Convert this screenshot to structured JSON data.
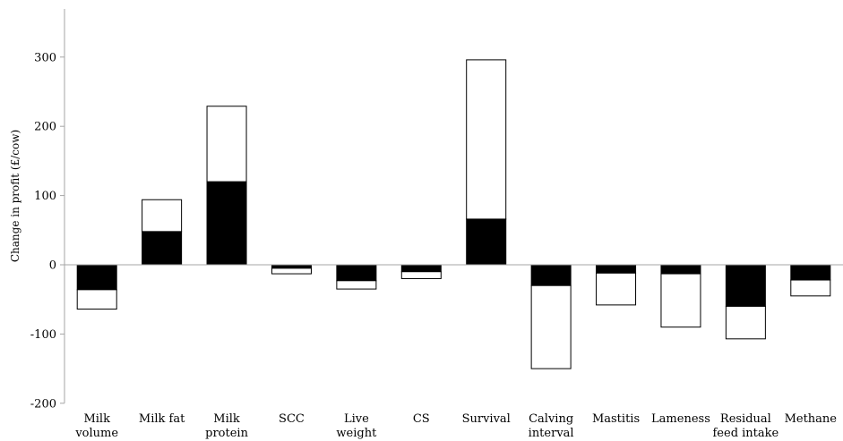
{
  "chart_data": {
    "type": "bar",
    "stacked": true,
    "title": "",
    "ylabel": "Change in profit (£/cow)",
    "xlabel": "",
    "ylim": [
      -200,
      350
    ],
    "yticks": [
      -200,
      -100,
      0,
      100,
      200,
      300
    ],
    "grid": false,
    "legend": "none",
    "categories": [
      [
        "Milk",
        "volume"
      ],
      [
        "Milk fat"
      ],
      [
        "Milk",
        "protein"
      ],
      [
        "SCC"
      ],
      [
        "Live",
        "weight"
      ],
      [
        "CS"
      ],
      [
        "Survival"
      ],
      [
        "Calving",
        "interval"
      ],
      [
        "Mastitis"
      ],
      [
        "Lameness"
      ],
      [
        "Residual",
        "feed intake"
      ],
      [
        "Methane"
      ]
    ],
    "series": [
      {
        "fill": "#000000",
        "values": [
          -36,
          48,
          120,
          -5,
          -23,
          -10,
          66,
          -30,
          -12,
          -13,
          -60,
          -22
        ]
      },
      {
        "fill": "#ffffff",
        "values": [
          -28,
          46,
          109,
          -8,
          -12,
          -10,
          230,
          -120,
          -46,
          -77,
          -47,
          -23
        ]
      }
    ],
    "colors": {
      "axis": "#a6a6a6",
      "outline": "#000000"
    }
  }
}
